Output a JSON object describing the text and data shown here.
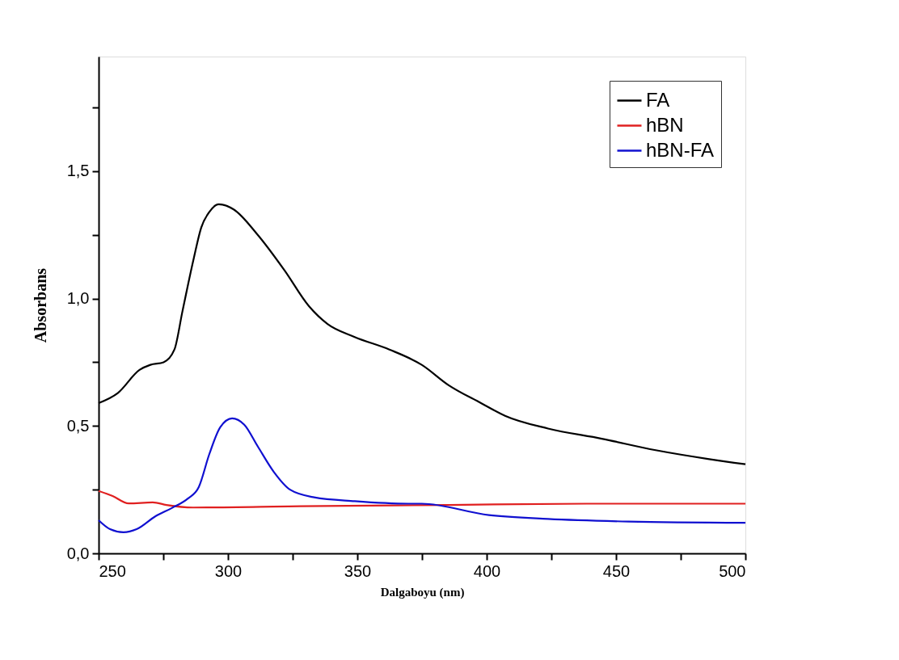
{
  "chart_data": {
    "type": "line",
    "xlabel": "Dalgaboyu (nm)",
    "ylabel": "Absorbans",
    "xlim": [
      250,
      500
    ],
    "ylim": [
      0,
      1.95
    ],
    "xticks": [
      250,
      {
        "value": 275,
        "label": null
      },
      300,
      {
        "value": 325,
        "label": null
      },
      350,
      {
        "value": 375,
        "label": null
      },
      400,
      {
        "value": 425,
        "label": null
      },
      450,
      {
        "value": 475,
        "label": null
      },
      500
    ],
    "yticks": [
      {
        "value": 0,
        "label": "0,0"
      },
      {
        "value": 0.25,
        "label": null
      },
      {
        "value": 0.5,
        "label": "0,5"
      },
      {
        "value": 0.75,
        "label": null
      },
      {
        "value": 1.0,
        "label": "1,0"
      },
      {
        "value": 1.25,
        "label": null
      },
      {
        "value": 1.5,
        "label": "1,5"
      },
      {
        "value": 1.75,
        "label": null
      }
    ],
    "grid": false,
    "legend": "top right",
    "marker": "none",
    "line_style": "solid",
    "series": [
      {
        "name": "FA",
        "color": "#000000",
        "x": [
          250,
          257.5,
          265.8,
          270,
          275.1,
          279.3,
          282.4,
          286.6,
          289.7,
          292.8,
          296.4,
          302.2,
          311.5,
          321.9,
          331.3,
          338.5,
          348.8,
          362.4,
          374.9,
          385.3,
          397.8,
          407.1,
          423.7,
          444.5,
          465.3,
          486,
          500
        ],
        "values": [
          0.59,
          0.63,
          0.72,
          0.74,
          0.75,
          0.8,
          0.95,
          1.15,
          1.28,
          1.34,
          1.37,
          1.35,
          1.25,
          1.11,
          0.97,
          0.9,
          0.85,
          0.8,
          0.74,
          0.66,
          0.59,
          0.54,
          0.49,
          0.45,
          0.405,
          0.37,
          0.35
        ]
      },
      {
        "name": "hBN",
        "color": "#e02020",
        "x": [
          250,
          255.4,
          261.6,
          270.9,
          276.2,
          286.5,
          328,
          385.3,
          440,
          500
        ],
        "values": [
          0.245,
          0.225,
          0.196,
          0.2,
          0.19,
          0.18,
          0.185,
          0.19,
          0.195,
          0.195
        ]
      },
      {
        "name": "hBN-FA",
        "color": "#1010d0",
        "x": [
          250,
          254.4,
          259.6,
          264.7,
          272,
          278.3,
          284.5,
          288.7,
          292.8,
          297,
          301.6,
          306.3,
          311.5,
          317.7,
          324,
          333.3,
          349,
          369.7,
          374.9,
          400.9,
          423.7,
          454.8,
          500
        ],
        "values": [
          0.13,
          0.095,
          0.083,
          0.095,
          0.146,
          0.178,
          0.215,
          0.26,
          0.39,
          0.495,
          0.53,
          0.505,
          0.42,
          0.32,
          0.25,
          0.22,
          0.205,
          0.195,
          0.195,
          0.15,
          0.135,
          0.125,
          0.12
        ]
      }
    ]
  }
}
